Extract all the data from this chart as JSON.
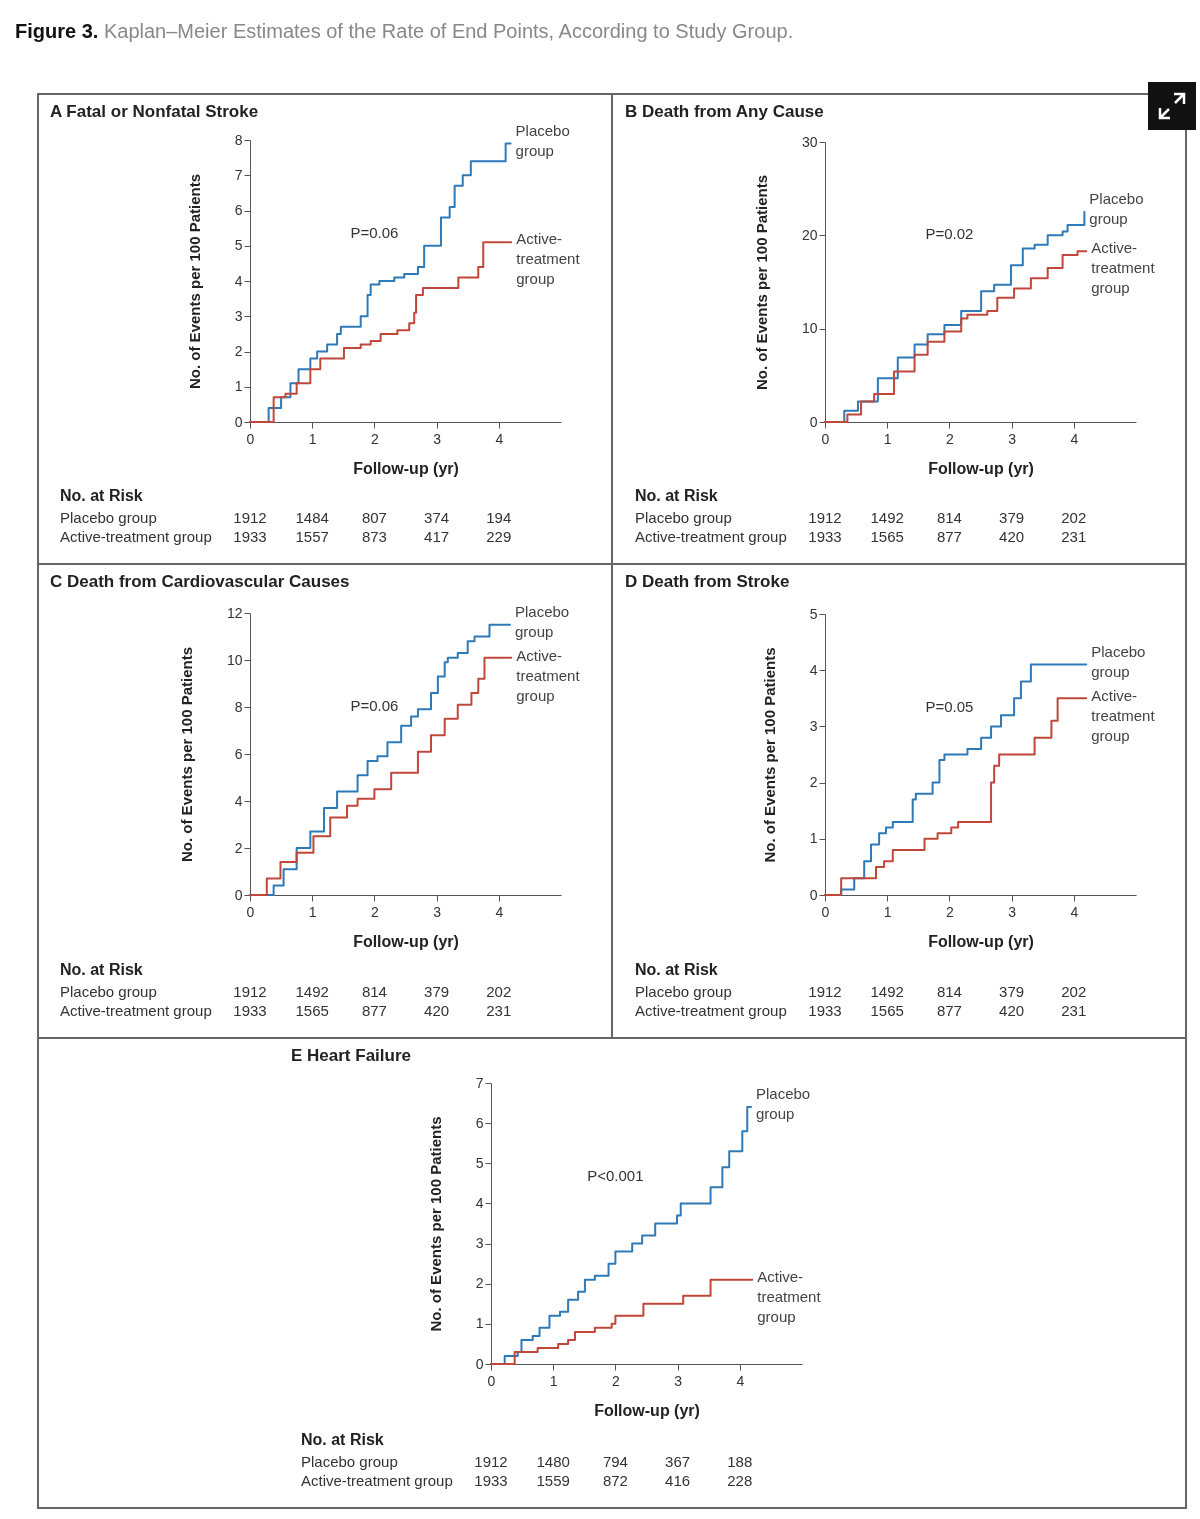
{
  "chart_data": [
    {
      "type": "step",
      "title": "A  Fatal or Nonfatal Stroke",
      "xlabel": "Follow-up (yr)",
      "ylabel": "No. of Events per 100 Patients",
      "xlim": [
        0,
        5
      ],
      "xticks": [
        0,
        1,
        2,
        3,
        4
      ],
      "ylim": [
        0,
        8
      ],
      "yticks": [
        0,
        1,
        2,
        3,
        4,
        5,
        6,
        7,
        8
      ],
      "series": [
        {
          "name": "Placebo group",
          "color": "#2e7ab8",
          "x": [
            0,
            0.3,
            0.5,
            0.65,
            0.78,
            0.97,
            1.08,
            1.24,
            1.4,
            1.46,
            1.78,
            1.89,
            1.94,
            2.08,
            2.32,
            2.48,
            2.7,
            2.8,
            3.07,
            3.21,
            3.29,
            3.42,
            3.55,
            4.11,
            4.19
          ],
          "values": [
            0,
            0.4,
            0.7,
            1.1,
            1.5,
            1.8,
            2.0,
            2.2,
            2.5,
            2.7,
            3.0,
            3.6,
            3.9,
            4.0,
            4.1,
            4.2,
            4.4,
            5.0,
            5.8,
            6.1,
            6.7,
            7.0,
            7.4,
            7.9,
            7.9
          ]
        },
        {
          "name": "Active-treatment group",
          "color": "#c0473a",
          "x": [
            0,
            0.38,
            0.57,
            0.75,
            0.97,
            1.13,
            1.51,
            1.78,
            1.94,
            2.1,
            2.37,
            2.56,
            2.64,
            2.67,
            2.78,
            3.35,
            3.67,
            3.75,
            4.2
          ],
          "values": [
            0,
            0.7,
            0.8,
            1.1,
            1.5,
            1.8,
            2.1,
            2.2,
            2.3,
            2.5,
            2.6,
            2.8,
            3.1,
            3.6,
            3.8,
            4.1,
            4.4,
            5.1,
            5.1
          ]
        }
      ],
      "annotations": [
        "P=0.06",
        "No. at Risk",
        "Placebo group",
        "1912",
        "1484",
        "807",
        "374",
        "194",
        "Active-treatment group",
        "1933",
        "1557",
        "873",
        "417",
        "229",
        "Figure 3. Kaplan–Meier Estimates of the Rate of End Points, According to Study Group."
      ]
    },
    {
      "type": "step",
      "title": "B  Death from Any Cause",
      "xlabel": "Follow-up (yr)",
      "ylabel": "No. of Events per 100 Patients",
      "xlim": [
        0,
        5
      ],
      "xticks": [
        0,
        1,
        2,
        3,
        4
      ],
      "ylim": [
        0,
        30
      ],
      "yticks": [
        0,
        10,
        20,
        30
      ],
      "series": [
        {
          "name": "Placebo group",
          "color": "#2e7ab8",
          "x": [
            0,
            0.31,
            0.53,
            0.85,
            1.17,
            1.44,
            1.65,
            1.92,
            2.19,
            2.51,
            2.72,
            2.99,
            3.18,
            3.37,
            3.58,
            3.82,
            3.9,
            4.17
          ],
          "values": [
            0,
            1.2,
            2.2,
            4.7,
            6.9,
            8.3,
            9.4,
            10.4,
            11.9,
            14.0,
            14.7,
            16.8,
            18.6,
            19.0,
            20.0,
            20.4,
            21.1,
            22.5
          ]
        },
        {
          "name": "Active-treatment group",
          "color": "#c0473a",
          "x": [
            0,
            0.36,
            0.58,
            0.79,
            1.11,
            1.44,
            1.65,
            1.92,
            2.19,
            2.29,
            2.61,
            2.77,
            3.04,
            3.31,
            3.58,
            3.82,
            4.06,
            4.2
          ],
          "values": [
            0,
            0.8,
            2.2,
            3.0,
            5.4,
            7.2,
            8.6,
            9.7,
            11.1,
            11.5,
            11.9,
            13.3,
            14.3,
            15.4,
            16.5,
            17.9,
            18.3,
            18.3
          ]
        }
      ],
      "annotations": [
        "P=0.02",
        "No. at Risk",
        "Placebo group",
        "1912",
        "1492",
        "814",
        "379",
        "202",
        "Active-treatment group",
        "1933",
        "1565",
        "877",
        "420",
        "231"
      ]
    },
    {
      "type": "step",
      "title": "C  Death from Cardiovascular Causes",
      "xlabel": "Follow-up (yr)",
      "ylabel": "No. of Events per 100 Patients",
      "xlim": [
        0,
        5
      ],
      "xticks": [
        0,
        1,
        2,
        3,
        4
      ],
      "ylim": [
        0,
        12
      ],
      "yticks": [
        0,
        2,
        4,
        6,
        8,
        10,
        12
      ],
      "series": [
        {
          "name": "Placebo group",
          "color": "#2e7ab8",
          "x": [
            0,
            0.38,
            0.54,
            0.75,
            0.97,
            1.19,
            1.4,
            1.73,
            1.89,
            2.05,
            2.21,
            2.43,
            2.59,
            2.7,
            2.91,
            3.02,
            3.13,
            3.18,
            3.34,
            3.5,
            3.61,
            3.85,
            4.18
          ],
          "values": [
            0,
            0.4,
            1.1,
            2.0,
            2.7,
            3.7,
            4.4,
            5.1,
            5.7,
            5.9,
            6.5,
            7.2,
            7.6,
            7.9,
            8.6,
            9.3,
            9.9,
            10.1,
            10.3,
            10.8,
            11.0,
            11.5,
            11.5
          ]
        },
        {
          "name": "Active-treatment group",
          "color": "#c0473a",
          "x": [
            0,
            0.27,
            0.49,
            0.75,
            1.02,
            1.29,
            1.56,
            1.73,
            2.0,
            2.27,
            2.7,
            2.91,
            3.13,
            3.34,
            3.56,
            3.67,
            3.77,
            4.2
          ],
          "values": [
            0,
            0.7,
            1.4,
            1.8,
            2.5,
            3.3,
            3.8,
            4.1,
            4.5,
            5.2,
            6.1,
            6.8,
            7.5,
            8.1,
            8.6,
            9.2,
            10.1,
            10.1
          ]
        }
      ],
      "annotations": [
        "P=0.06",
        "No. at Risk",
        "Placebo group",
        "1912",
        "1492",
        "814",
        "379",
        "202",
        "Active-treatment group",
        "1933",
        "1565",
        "877",
        "420",
        "231"
      ]
    },
    {
      "type": "step",
      "title": "D  Death from Stroke",
      "xlabel": "Follow-up (yr)",
      "ylabel": "No. of Events per 100 Patients",
      "xlim": [
        0,
        5
      ],
      "xticks": [
        0,
        1,
        2,
        3,
        4
      ],
      "ylim": [
        0,
        5
      ],
      "yticks": [
        0,
        1,
        2,
        3,
        4,
        5
      ],
      "series": [
        {
          "name": "Placebo group",
          "color": "#2e7ab8",
          "x": [
            0,
            0.26,
            0.47,
            0.63,
            0.74,
            0.87,
            0.98,
            1.09,
            1.41,
            1.46,
            1.73,
            1.84,
            1.92,
            2.29,
            2.51,
            2.67,
            2.83,
            3.04,
            3.15,
            3.31,
            4.2
          ],
          "values": [
            0,
            0.1,
            0.3,
            0.6,
            0.9,
            1.1,
            1.2,
            1.3,
            1.7,
            1.8,
            2.0,
            2.4,
            2.5,
            2.6,
            2.8,
            3.0,
            3.2,
            3.5,
            3.8,
            4.1,
            4.1
          ]
        },
        {
          "name": "Active-treatment group",
          "color": "#c0473a",
          "x": [
            0,
            0.26,
            0.82,
            0.95,
            1.09,
            1.6,
            1.81,
            2.03,
            2.14,
            2.67,
            2.72,
            2.8,
            3.37,
            3.64,
            3.74,
            4.2
          ],
          "values": [
            0,
            0.3,
            0.5,
            0.6,
            0.8,
            1.0,
            1.1,
            1.2,
            1.3,
            2.0,
            2.3,
            2.5,
            2.8,
            3.1,
            3.5,
            3.5
          ]
        }
      ],
      "annotations": [
        "P=0.05",
        "No. at Risk",
        "Placebo group",
        "1912",
        "1492",
        "814",
        "379",
        "202",
        "Active-treatment group",
        "1933",
        "1565",
        "877",
        "420",
        "231"
      ]
    },
    {
      "type": "step",
      "title": "E  Heart Failure",
      "xlabel": "Follow-up (yr)",
      "ylabel": "No. of Events per 100 Patients",
      "xlim": [
        0,
        5
      ],
      "xticks": [
        0,
        1,
        2,
        3,
        4
      ],
      "ylim": [
        0,
        7
      ],
      "yticks": [
        0,
        1,
        2,
        3,
        4,
        5,
        6,
        7
      ],
      "series": [
        {
          "name": "Placebo group",
          "color": "#2e7ab8",
          "x": [
            0,
            0.22,
            0.43,
            0.49,
            0.67,
            0.78,
            0.94,
            1.11,
            1.24,
            1.4,
            1.51,
            1.67,
            1.89,
            2.0,
            2.27,
            2.43,
            2.64,
            2.99,
            3.05,
            3.53,
            3.72,
            3.83,
            4.04,
            4.12,
            4.18
          ],
          "values": [
            0,
            0.2,
            0.3,
            0.6,
            0.7,
            0.9,
            1.2,
            1.3,
            1.6,
            1.8,
            2.1,
            2.2,
            2.5,
            2.8,
            3.0,
            3.2,
            3.5,
            3.7,
            4.0,
            4.4,
            4.9,
            5.3,
            5.8,
            6.4,
            6.4
          ]
        },
        {
          "name": "Active-treatment group",
          "color": "#c0473a",
          "x": [
            0,
            0.38,
            0.75,
            1.08,
            1.24,
            1.35,
            1.67,
            1.94,
            2.0,
            2.45,
            3.09,
            3.53,
            4.2
          ],
          "values": [
            0,
            0.3,
            0.4,
            0.5,
            0.6,
            0.8,
            0.9,
            1.0,
            1.2,
            1.5,
            1.7,
            2.1,
            2.1
          ]
        }
      ],
      "annotations": [
        "P<0.001",
        "No. at Risk",
        "Placebo group",
        "1912",
        "1480",
        "794",
        "367",
        "188",
        "Active-treatment group",
        "1933",
        "1559",
        "872",
        "416",
        "228"
      ]
    }
  ]
}
